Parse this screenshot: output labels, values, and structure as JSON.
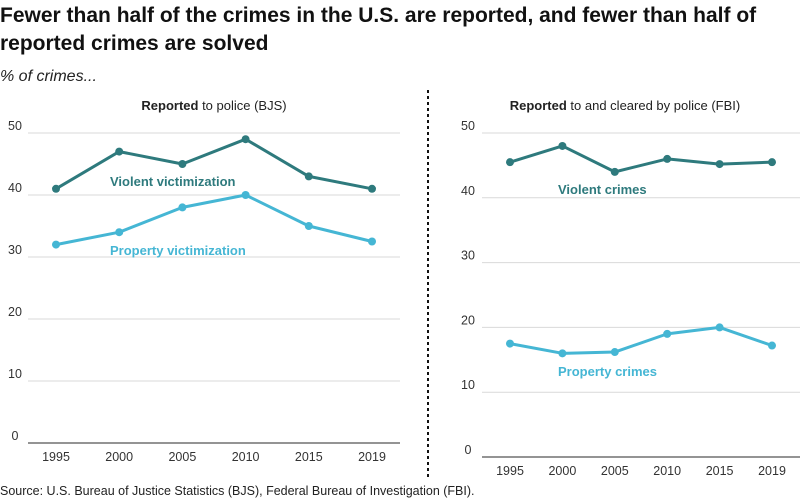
{
  "title": "Fewer than half of the crimes in the U.S. are reported, and fewer than half of reported crimes are solved",
  "subtitle": "% of crimes...",
  "source": "Source: U.S. Bureau of Justice Statistics (BJS), Federal Bureau of Investigation (FBI).",
  "colors": {
    "violent": "#2e7a7d",
    "property": "#45b6d4",
    "grid": "#d9d9d9",
    "axis": "#555555"
  },
  "chart_data": [
    {
      "type": "line",
      "title_bold": "Reported",
      "title_rest": " to police (BJS)",
      "x": [
        "1995",
        "2000",
        "2005",
        "2010",
        "2015",
        "2019"
      ],
      "ylim": [
        0,
        50
      ],
      "yticks": [
        "0",
        "10",
        "20",
        "30",
        "40",
        "50"
      ],
      "grid": true,
      "series": [
        {
          "name": "Violent victimization",
          "key": "violent",
          "values": [
            41,
            47,
            45,
            49,
            43,
            41
          ]
        },
        {
          "name": "Property victimization",
          "key": "property",
          "values": [
            32,
            34,
            38,
            40,
            35,
            32.5
          ]
        }
      ]
    },
    {
      "type": "line",
      "title_bold": "Reported",
      "title_rest": " to and cleared by police (FBI)",
      "x": [
        "1995",
        "2000",
        "2005",
        "2010",
        "2015",
        "2019"
      ],
      "ylim": [
        0,
        50
      ],
      "yticks": [
        "0",
        "10",
        "20",
        "30",
        "40",
        "50"
      ],
      "grid": true,
      "series": [
        {
          "name": "Violent crimes",
          "key": "violent",
          "values": [
            45.5,
            48,
            44,
            46,
            45.2,
            45.5
          ]
        },
        {
          "name": "Property crimes",
          "key": "property",
          "values": [
            17.5,
            16,
            16.2,
            19,
            20,
            17.2
          ]
        }
      ]
    }
  ]
}
